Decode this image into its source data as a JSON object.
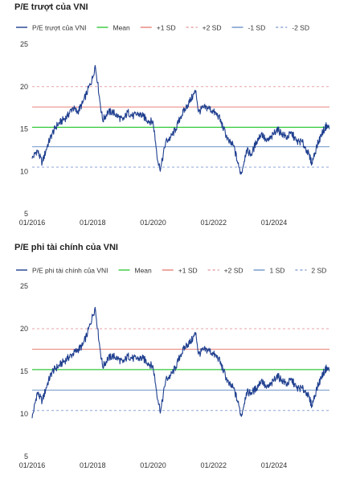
{
  "colors": {
    "series": "#1f3f8f",
    "mean": "#35c93a",
    "plus1sd": "#e8837a",
    "plus2sd": "#e8a3a8",
    "minus1sd": "#6f95c9",
    "minus2sd": "#8fa6d6",
    "axis_text": "#333333"
  },
  "chart_data": [
    {
      "type": "line",
      "title": "P/E trượt của VNI",
      "legend": [
        "P/E trượt của VNI",
        "Mean",
        "+1 SD",
        "+2 SD",
        "-1 SD",
        "-2 SD"
      ],
      "legend_placement": "top",
      "ylim": [
        5,
        25
      ],
      "yticks": [
        "5",
        "10",
        "15",
        "20",
        "25"
      ],
      "x_ticks": [
        "01/2016",
        "01/2018",
        "01/2020",
        "01/2022",
        "01/2024"
      ],
      "x_range": [
        "2016-01",
        "2025-11"
      ],
      "grid": false,
      "series": [
        {
          "name": "P/E trượt của VNI",
          "x": [
            "2016-01",
            "2016-03",
            "2016-05",
            "2016-07",
            "2016-09",
            "2016-11",
            "2017-01",
            "2017-03",
            "2017-05",
            "2017-07",
            "2017-09",
            "2017-11",
            "2018-01",
            "2018-02",
            "2018-03",
            "2018-04",
            "2018-05",
            "2018-07",
            "2018-09",
            "2018-11",
            "2019-01",
            "2019-03",
            "2019-05",
            "2019-07",
            "2019-09",
            "2019-11",
            "2020-01",
            "2020-03",
            "2020-04",
            "2020-06",
            "2020-08",
            "2020-10",
            "2020-12",
            "2021-02",
            "2021-04",
            "2021-06",
            "2021-07",
            "2021-09",
            "2021-11",
            "2022-01",
            "2022-03",
            "2022-05",
            "2022-07",
            "2022-09",
            "2022-11",
            "2022-12",
            "2023-02",
            "2023-04",
            "2023-06",
            "2023-08",
            "2023-10",
            "2023-12",
            "2024-02",
            "2024-04",
            "2024-06",
            "2024-08",
            "2024-10",
            "2024-12",
            "2025-02",
            "2025-04",
            "2025-06",
            "2025-08",
            "2025-10",
            "2025-11"
          ],
          "values": [
            11.5,
            12.5,
            11.0,
            13.0,
            14.5,
            15.5,
            16.0,
            16.5,
            17.5,
            17.0,
            18.0,
            19.5,
            21.0,
            22.5,
            20.5,
            18.0,
            16.0,
            17.0,
            17.0,
            16.5,
            16.0,
            17.0,
            16.5,
            16.8,
            16.5,
            16.0,
            15.8,
            11.0,
            10.3,
            13.5,
            14.0,
            15.0,
            16.5,
            17.5,
            18.5,
            19.5,
            17.0,
            17.5,
            17.5,
            17.0,
            16.5,
            15.0,
            13.5,
            13.0,
            10.5,
            9.7,
            12.5,
            12.0,
            13.5,
            14.5,
            13.5,
            14.0,
            15.0,
            14.5,
            14.0,
            14.5,
            13.5,
            13.5,
            12.5,
            11.0,
            13.0,
            14.5,
            15.5,
            15.0
          ]
        },
        {
          "name": "Mean",
          "value": 15.2
        },
        {
          "name": "+1 SD",
          "value": 17.6
        },
        {
          "name": "+2 SD",
          "value": 20.0
        },
        {
          "name": "-1 SD",
          "value": 12.9
        },
        {
          "name": "-2 SD",
          "value": 10.5
        }
      ]
    },
    {
      "type": "line",
      "title": "P/E phi tài chính của VNI",
      "legend": [
        "P/E phi tài chính của VNI",
        "Mean",
        "+1 SD",
        "+2 SD",
        "1 SD",
        "2 SD"
      ],
      "legend_placement": "top",
      "ylim": [
        5,
        25
      ],
      "yticks": [
        "5",
        "10",
        "15",
        "20",
        "25"
      ],
      "x_ticks": [
        "01/2016",
        "01/2018",
        "01/2020",
        "01/2022",
        "01/2024"
      ],
      "x_range": [
        "2016-01",
        "2025-11"
      ],
      "grid": false,
      "series": [
        {
          "name": "P/E phi tài chính của VNI",
          "x": [
            "2016-01",
            "2016-03",
            "2016-05",
            "2016-07",
            "2016-09",
            "2016-11",
            "2017-01",
            "2017-03",
            "2017-05",
            "2017-07",
            "2017-09",
            "2017-11",
            "2018-01",
            "2018-02",
            "2018-03",
            "2018-04",
            "2018-05",
            "2018-07",
            "2018-09",
            "2018-11",
            "2019-01",
            "2019-03",
            "2019-05",
            "2019-07",
            "2019-09",
            "2019-11",
            "2020-01",
            "2020-03",
            "2020-04",
            "2020-06",
            "2020-08",
            "2020-10",
            "2020-12",
            "2021-02",
            "2021-04",
            "2021-06",
            "2021-07",
            "2021-09",
            "2021-11",
            "2022-01",
            "2022-03",
            "2022-05",
            "2022-07",
            "2022-09",
            "2022-11",
            "2022-12",
            "2023-02",
            "2023-04",
            "2023-06",
            "2023-08",
            "2023-10",
            "2023-12",
            "2024-02",
            "2024-04",
            "2024-06",
            "2024-08",
            "2024-10",
            "2024-12",
            "2025-02",
            "2025-04",
            "2025-06",
            "2025-08",
            "2025-10",
            "2025-11"
          ],
          "values": [
            9.5,
            12.5,
            11.5,
            13.5,
            15.0,
            15.5,
            16.0,
            16.5,
            17.0,
            17.5,
            18.0,
            19.5,
            21.5,
            22.5,
            20.0,
            17.5,
            15.5,
            16.5,
            16.8,
            16.5,
            16.0,
            16.8,
            16.5,
            16.5,
            16.5,
            16.0,
            15.5,
            11.5,
            10.3,
            14.0,
            14.5,
            15.5,
            17.0,
            18.0,
            18.5,
            19.5,
            17.0,
            17.5,
            17.5,
            17.0,
            16.5,
            15.0,
            13.5,
            13.0,
            11.0,
            9.7,
            12.5,
            12.5,
            13.0,
            14.0,
            13.0,
            13.5,
            14.5,
            14.0,
            13.5,
            14.0,
            13.0,
            13.0,
            12.5,
            11.0,
            13.0,
            14.5,
            15.5,
            15.0
          ]
        },
        {
          "name": "Mean",
          "value": 15.2
        },
        {
          "name": "+1 SD",
          "value": 17.6
        },
        {
          "name": "+2 SD",
          "value": 20.0
        },
        {
          "name": "1 SD",
          "value": 12.8
        },
        {
          "name": "2 SD",
          "value": 10.4
        }
      ]
    }
  ]
}
